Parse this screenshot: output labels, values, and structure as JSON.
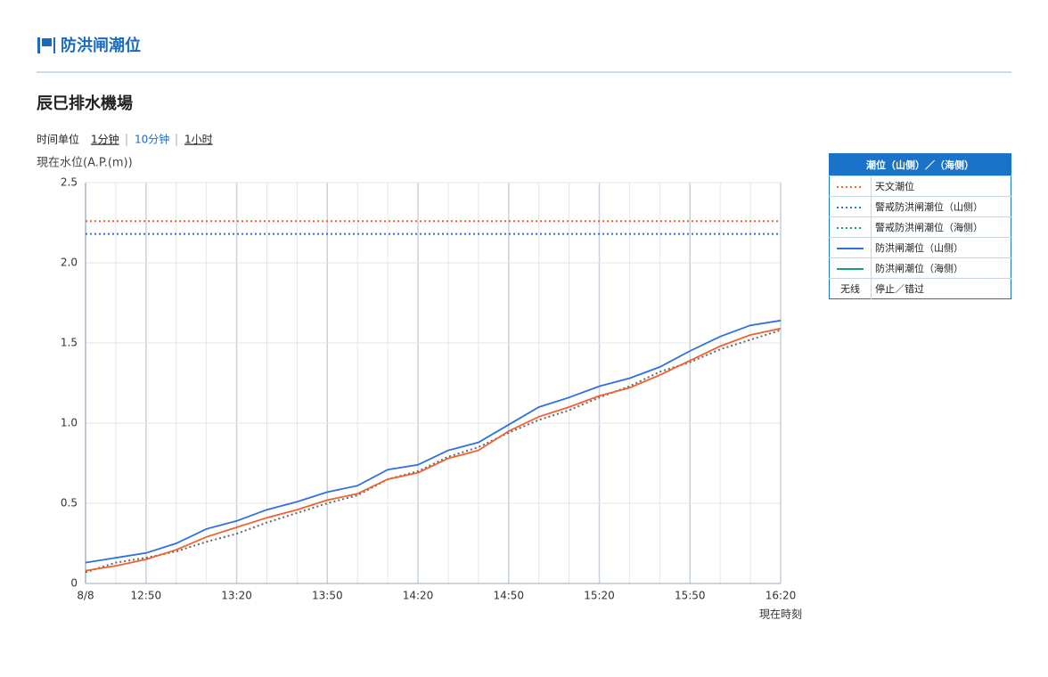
{
  "header": {
    "title": "防洪闸潮位"
  },
  "station": "辰巳排水機場",
  "toolbar": {
    "label": "时间单位",
    "options": [
      "1分钟",
      "10分钟",
      "1小时"
    ]
  },
  "legend": {
    "title": "潮位（山侧）／（海侧）",
    "rows": [
      {
        "label": "天文潮位",
        "color": "#f0622d",
        "style": "dotted"
      },
      {
        "label": "警戒防洪闸潮位（山侧）",
        "color": "#2f6fe0",
        "style": "dotted"
      },
      {
        "label": "警戒防洪闸潮位（海侧）",
        "color": "#1a9f6e",
        "style": "dotted"
      },
      {
        "label": "防洪闸潮位（山侧）",
        "color": "#2f6fe0",
        "style": "solid"
      },
      {
        "label": "防洪闸潮位（海侧）",
        "color": "#1a9f6e",
        "style": "solid"
      },
      {
        "symbol": "无线",
        "label": "停止／错过"
      }
    ]
  },
  "chart_data": {
    "type": "line",
    "ylabel": "現在水位(A.P.(m))",
    "xlabel": "現在時刻",
    "categories": [
      "8/8",
      null,
      "12:50",
      null,
      null,
      "13:20",
      null,
      null,
      "13:50",
      null,
      null,
      "14:20",
      null,
      null,
      "14:50",
      null,
      null,
      "15:20",
      null,
      null,
      "15:50",
      null,
      null,
      "16:20"
    ],
    "ylim": [
      0,
      2.5
    ],
    "yticks": [
      0,
      0.5,
      {
        "value": 1,
        "label": "1.0"
      },
      1.5,
      {
        "value": 2,
        "label": "2.0"
      },
      2.5
    ],
    "grid": true,
    "series": [
      {
        "color": "#f0622d",
        "style": "dotted",
        "values": [
          2.26,
          2.26,
          2.26,
          2.26,
          2.26,
          2.26,
          2.26,
          2.26,
          2.26,
          2.26,
          2.26,
          2.26,
          2.26,
          2.26,
          2.26,
          2.26,
          2.26,
          2.26,
          2.26,
          2.26,
          2.26,
          2.26,
          2.26,
          2.26
        ]
      },
      {
        "color": "#2f6fe0",
        "style": "dotted",
        "values": [
          2.18,
          2.18,
          2.18,
          2.18,
          2.18,
          2.18,
          2.18,
          2.18,
          2.18,
          2.18,
          2.18,
          2.18,
          2.18,
          2.18,
          2.18,
          2.18,
          2.18,
          2.18,
          2.18,
          2.18,
          2.18,
          2.18,
          2.18,
          2.18
        ]
      },
      {
        "color": "#666666",
        "style": "dotted",
        "values": [
          0.07,
          0.13,
          0.16,
          0.2,
          0.26,
          0.31,
          0.38,
          0.44,
          0.5,
          0.55,
          0.65,
          0.7,
          0.79,
          0.85,
          0.94,
          1.02,
          1.08,
          1.16,
          1.23,
          1.32,
          1.38,
          1.46,
          1.52,
          1.58
        ]
      },
      {
        "color": "#f0622d",
        "style": "solid",
        "values": [
          0.08,
          0.11,
          0.15,
          0.21,
          0.29,
          0.35,
          0.41,
          0.46,
          0.52,
          0.56,
          0.65,
          0.69,
          0.78,
          0.83,
          0.95,
          1.04,
          1.1,
          1.17,
          1.22,
          1.3,
          1.39,
          1.48,
          1.55,
          1.59
        ]
      },
      {
        "color": "#2f6fe0",
        "style": "solid",
        "values": [
          0.13,
          0.16,
          0.19,
          0.25,
          0.34,
          0.39,
          0.46,
          0.51,
          0.57,
          0.61,
          0.71,
          0.74,
          0.83,
          0.88,
          0.99,
          1.1,
          1.16,
          1.23,
          1.28,
          1.35,
          1.45,
          1.54,
          1.61,
          1.64
        ]
      }
    ]
  }
}
